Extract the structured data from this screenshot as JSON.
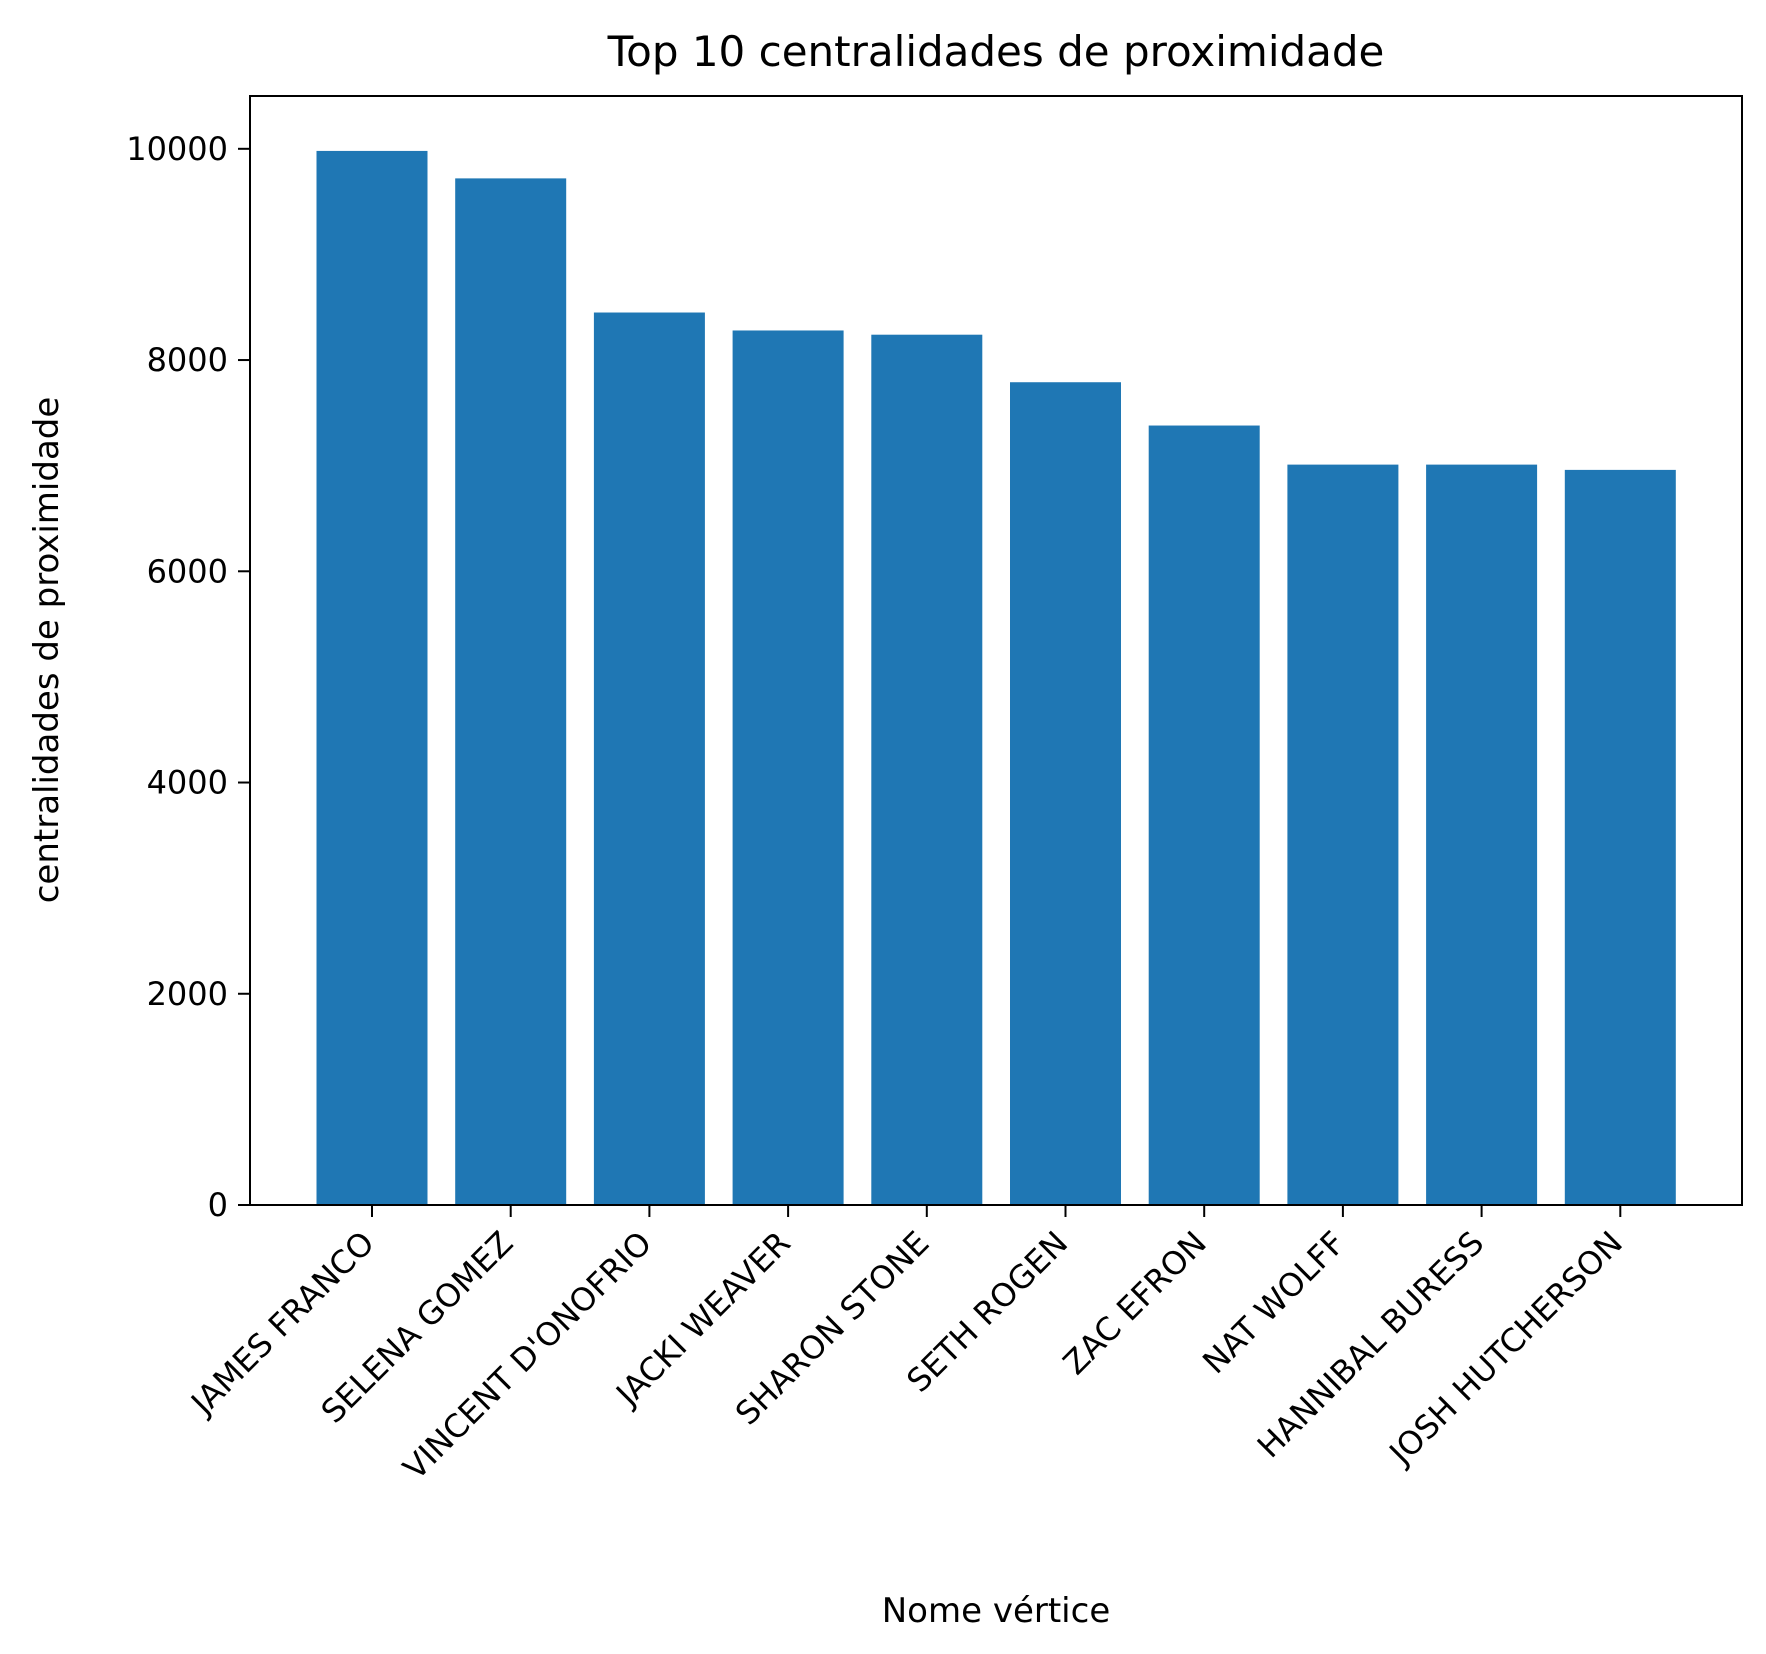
{
  "chart_data": {
    "type": "bar",
    "title": "Top 10 centralidades de proximidade",
    "xlabel": "Nome vértice",
    "ylabel": "centralidades de proximidade",
    "categories": [
      "JAMES FRANCO",
      "SELENA GOMEZ",
      "VINCENT D'ONOFRIO",
      "JACKI WEAVER",
      "SHARON STONE",
      "SETH ROGEN",
      "ZAC EFRON",
      "NAT WOLFF",
      "HANNIBAL BURESS",
      "JOSH HUTCHERSON"
    ],
    "values": [
      9980,
      9720,
      8450,
      8280,
      8240,
      7790,
      7380,
      7010,
      7010,
      6960
    ],
    "ylim": [
      0,
      10500
    ],
    "yticks": [
      0,
      2000,
      4000,
      6000,
      8000,
      10000
    ],
    "bar_color": "#1f77b4",
    "grid": false,
    "legend": "none"
  }
}
